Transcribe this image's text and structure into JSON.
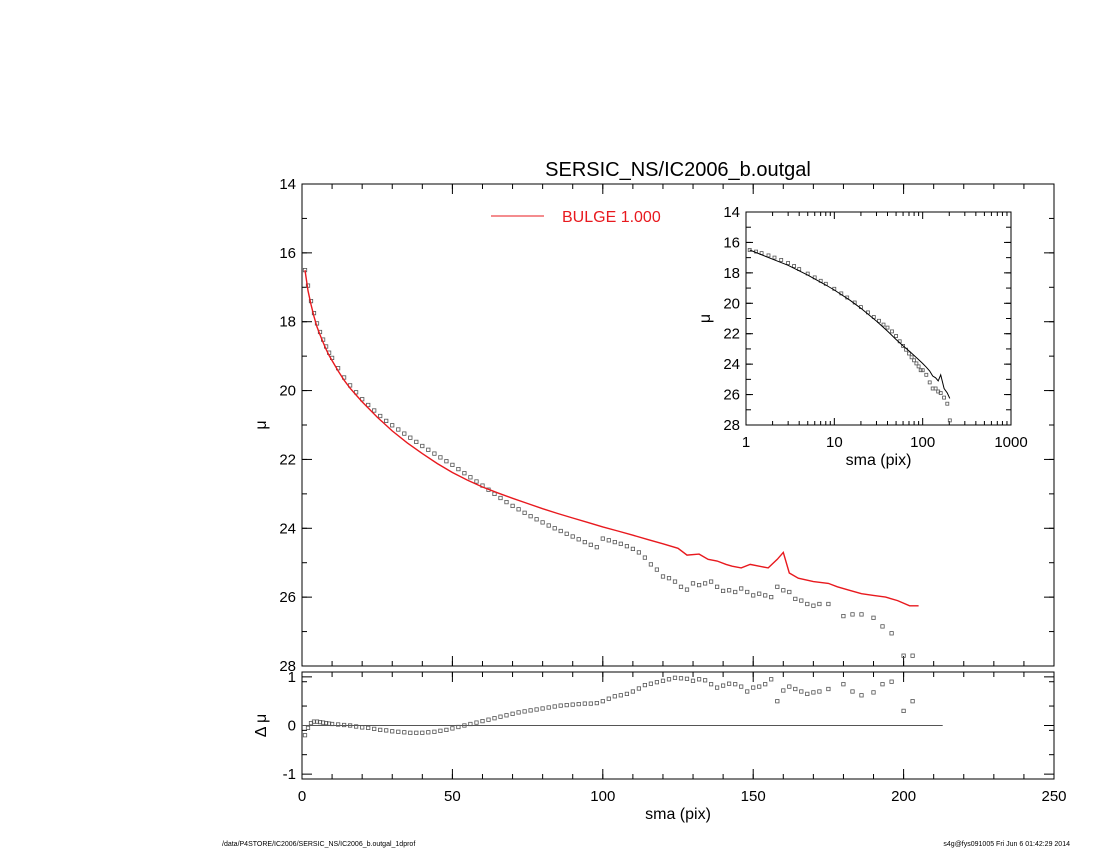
{
  "footer": {
    "path": "/data/P4STORE/IC2006/SERSIC_NS/IC2006_b.outgal_1dprof",
    "stamp": "s4g@fys091005  Fri Jun  6 01:42:29 2014"
  },
  "chart_data": [
    {
      "id": "main",
      "type": "scatter",
      "title": "SERSIC_NS/IC2006_b.outgal",
      "xlabel": "",
      "ylabel": "μ",
      "xlim": [
        0,
        250
      ],
      "ylim": [
        28,
        14
      ],
      "y_inverted": true,
      "x_ticks": [
        0,
        50,
        100,
        150,
        200,
        250
      ],
      "y_ticks": [
        14,
        16,
        18,
        20,
        22,
        24,
        26,
        28
      ],
      "grid": false,
      "legend": {
        "placement": "top-center",
        "entries": [
          {
            "label": "BULGE  1.000",
            "color": "#e8191e"
          }
        ]
      },
      "series": [
        {
          "name": "",
          "style": "squares",
          "color": "#555555",
          "x": [
            1,
            2,
            3,
            4,
            5,
            6,
            7,
            8,
            9,
            10,
            12,
            14,
            16,
            18,
            20,
            22,
            24,
            26,
            28,
            30,
            32,
            34,
            36,
            38,
            40,
            42,
            44,
            46,
            48,
            50,
            52,
            54,
            56,
            58,
            60,
            62,
            64,
            66,
            68,
            70,
            72,
            74,
            76,
            78,
            80,
            82,
            84,
            86,
            88,
            90,
            92,
            94,
            96,
            98,
            100,
            102,
            104,
            106,
            108,
            110,
            112,
            114,
            116,
            118,
            120,
            122,
            124,
            126,
            128,
            130,
            132,
            134,
            136,
            138,
            140,
            142,
            144,
            146,
            148,
            150,
            152,
            154,
            156,
            158,
            160,
            162,
            164,
            166,
            168,
            170,
            172,
            175,
            180,
            183,
            186,
            190,
            193,
            196,
            200,
            203
          ],
          "y": [
            16.5,
            16.95,
            17.4,
            17.75,
            18.05,
            18.3,
            18.52,
            18.72,
            18.9,
            19.05,
            19.35,
            19.62,
            19.85,
            20.05,
            20.25,
            20.42,
            20.58,
            20.74,
            20.88,
            21.01,
            21.13,
            21.25,
            21.37,
            21.49,
            21.61,
            21.72,
            21.83,
            21.94,
            22.05,
            22.16,
            22.28,
            22.4,
            22.52,
            22.64,
            22.76,
            22.88,
            23.0,
            23.12,
            23.24,
            23.35,
            23.45,
            23.55,
            23.65,
            23.74,
            23.83,
            23.92,
            24.0,
            24.08,
            24.16,
            24.24,
            24.32,
            24.4,
            24.48,
            24.55,
            24.3,
            24.35,
            24.4,
            24.45,
            24.52,
            24.6,
            24.7,
            24.85,
            25.05,
            25.2,
            25.4,
            25.45,
            25.55,
            25.7,
            25.78,
            25.6,
            25.65,
            25.6,
            25.55,
            25.7,
            25.82,
            25.8,
            25.85,
            25.75,
            25.85,
            25.95,
            25.9,
            25.95,
            26.0,
            25.7,
            25.8,
            25.85,
            26.05,
            26.1,
            26.2,
            26.25,
            26.2,
            26.2,
            26.55,
            26.5,
            26.5,
            26.6,
            26.85,
            27.05,
            27.7,
            27.7
          ]
        },
        {
          "name": "BULGE  1.000",
          "style": "line",
          "color": "#e8191e",
          "x": [
            1,
            2,
            3,
            4,
            5,
            6,
            7,
            8,
            9,
            10,
            12,
            14,
            16,
            18,
            20,
            25,
            30,
            35,
            40,
            45,
            50,
            55,
            60,
            65,
            70,
            75,
            80,
            85,
            90,
            95,
            100,
            105,
            110,
            115,
            120,
            125,
            128,
            132,
            135,
            138,
            141,
            143,
            146,
            149,
            152,
            155,
            158,
            160,
            162,
            165,
            170,
            175,
            178,
            182,
            186,
            190,
            194,
            198,
            202,
            205
          ],
          "y": [
            16.5,
            17.1,
            17.5,
            17.85,
            18.15,
            18.38,
            18.6,
            18.8,
            18.98,
            19.13,
            19.43,
            19.7,
            19.93,
            20.13,
            20.33,
            20.77,
            21.17,
            21.52,
            21.83,
            22.12,
            22.38,
            22.6,
            22.8,
            22.97,
            23.13,
            23.28,
            23.43,
            23.57,
            23.7,
            23.83,
            23.96,
            24.08,
            24.2,
            24.33,
            24.45,
            24.58,
            24.78,
            24.75,
            24.9,
            24.95,
            25.05,
            25.1,
            25.15,
            25.05,
            25.1,
            25.15,
            24.9,
            24.7,
            25.3,
            25.45,
            25.55,
            25.6,
            25.7,
            25.8,
            25.9,
            25.95,
            26.0,
            26.1,
            26.25,
            26.25
          ]
        }
      ]
    },
    {
      "id": "residual",
      "type": "scatter",
      "xlabel": "sma (pix)",
      "ylabel": "Δ μ",
      "xlim": [
        0,
        250
      ],
      "ylim": [
        -1.1,
        1.1
      ],
      "x_ticks": [
        0,
        50,
        100,
        150,
        200,
        250
      ],
      "y_ticks": [
        -1,
        0,
        1
      ],
      "grid": false,
      "zero_line": true,
      "series": [
        {
          "name": "",
          "style": "squares",
          "color": "#555555",
          "x": [
            1,
            2,
            3,
            4,
            5,
            6,
            7,
            8,
            9,
            10,
            12,
            14,
            16,
            18,
            20,
            22,
            24,
            26,
            28,
            30,
            32,
            34,
            36,
            38,
            40,
            42,
            44,
            46,
            48,
            50,
            52,
            54,
            56,
            58,
            60,
            62,
            64,
            66,
            68,
            70,
            72,
            74,
            76,
            78,
            80,
            82,
            84,
            86,
            88,
            90,
            92,
            94,
            96,
            98,
            100,
            102,
            104,
            106,
            108,
            110,
            112,
            114,
            116,
            118,
            120,
            122,
            124,
            126,
            128,
            130,
            132,
            134,
            136,
            138,
            140,
            142,
            144,
            146,
            148,
            150,
            152,
            154,
            156,
            158,
            160,
            162,
            164,
            166,
            168,
            170,
            172,
            175,
            180,
            183,
            186,
            190,
            193,
            196,
            200,
            203
          ],
          "y": [
            -0.2,
            -0.05,
            0.05,
            0.08,
            0.08,
            0.07,
            0.06,
            0.05,
            0.04,
            0.03,
            0.02,
            0.01,
            0.0,
            -0.02,
            -0.04,
            -0.05,
            -0.07,
            -0.09,
            -0.1,
            -0.12,
            -0.13,
            -0.14,
            -0.15,
            -0.15,
            -0.15,
            -0.14,
            -0.13,
            -0.11,
            -0.09,
            -0.06,
            -0.03,
            0.0,
            0.03,
            0.06,
            0.09,
            0.12,
            0.15,
            0.18,
            0.21,
            0.24,
            0.27,
            0.29,
            0.31,
            0.33,
            0.35,
            0.37,
            0.39,
            0.41,
            0.42,
            0.43,
            0.44,
            0.45,
            0.45,
            0.46,
            0.5,
            0.55,
            0.6,
            0.62,
            0.65,
            0.7,
            0.76,
            0.83,
            0.86,
            0.89,
            0.92,
            0.95,
            0.98,
            0.97,
            0.96,
            0.92,
            0.95,
            0.93,
            0.85,
            0.78,
            0.82,
            0.86,
            0.85,
            0.8,
            0.7,
            0.78,
            0.8,
            0.85,
            0.95,
            0.5,
            0.72,
            0.8,
            0.75,
            0.7,
            0.65,
            0.68,
            0.7,
            0.75,
            0.85,
            0.7,
            0.62,
            0.68,
            0.85,
            0.9,
            0.3,
            0.5
          ]
        }
      ]
    },
    {
      "id": "inset",
      "type": "scatter",
      "xlabel": "sma (pix)",
      "ylabel": "μ",
      "xscale": "log",
      "xlim": [
        1,
        1000
      ],
      "ylim": [
        28,
        14
      ],
      "y_inverted": true,
      "x_ticks": [
        1,
        10,
        100,
        1000
      ],
      "y_ticks": [
        14,
        16,
        18,
        20,
        22,
        24,
        26,
        28
      ],
      "grid": false,
      "series": [
        {
          "name": "",
          "style": "squares",
          "color": "#555555",
          "x": [
            1.1,
            1.3,
            1.5,
            1.8,
            2.1,
            2.5,
            3,
            3.5,
            4,
            5,
            6,
            7,
            8,
            10,
            12,
            14,
            17,
            20,
            24,
            28,
            32,
            36,
            40,
            45,
            50,
            55,
            60,
            65,
            70,
            75,
            80,
            85,
            90,
            95,
            100,
            110,
            120,
            130,
            140,
            150,
            160,
            175,
            190,
            203
          ],
          "y": [
            16.5,
            16.6,
            16.7,
            16.85,
            17.0,
            17.15,
            17.35,
            17.55,
            17.75,
            18.05,
            18.3,
            18.52,
            18.72,
            19.05,
            19.35,
            19.62,
            19.95,
            20.25,
            20.6,
            20.9,
            21.15,
            21.4,
            21.6,
            21.85,
            22.15,
            22.5,
            22.8,
            23.05,
            23.3,
            23.55,
            23.75,
            23.95,
            24.15,
            24.4,
            24.4,
            24.7,
            25.2,
            25.6,
            25.6,
            25.8,
            25.9,
            26.2,
            26.6,
            27.7
          ]
        },
        {
          "name": "",
          "style": "line",
          "color": "#000000",
          "x": [
            1.1,
            2,
            3,
            5,
            8,
            10,
            15,
            20,
            30,
            40,
            50,
            60,
            70,
            80,
            90,
            100,
            110,
            120,
            130,
            140,
            150,
            160,
            175,
            190,
            203
          ],
          "y": [
            16.5,
            17.1,
            17.5,
            18.15,
            18.8,
            19.13,
            19.8,
            20.33,
            21.17,
            21.83,
            22.38,
            22.8,
            23.13,
            23.43,
            23.7,
            23.96,
            24.2,
            24.45,
            24.78,
            24.9,
            25.1,
            24.7,
            25.6,
            25.9,
            26.25
          ]
        }
      ]
    }
  ]
}
